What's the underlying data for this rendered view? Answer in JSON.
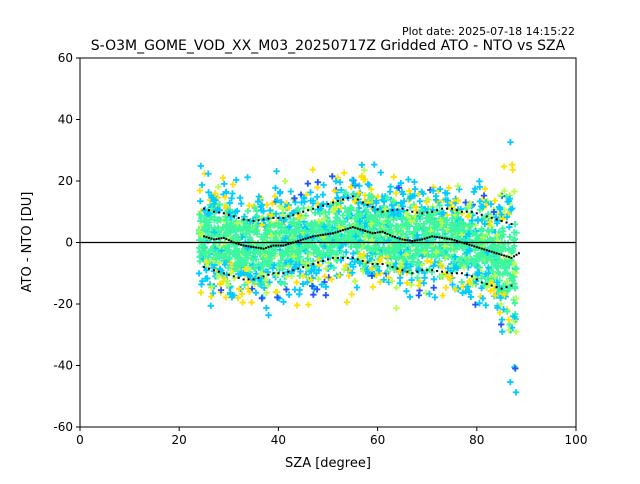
{
  "header": {
    "plot_date": "Plot date: 2025-07-18 14:15:22"
  },
  "chart_data": {
    "type": "scatter",
    "title": "S-O3M_GOME_VOD_XX_M03_20250717Z Gridded ATO - NTO vs SZA",
    "xlabel": "SZA [degree]",
    "ylabel": "ATO - NTO [DU]",
    "xlim": [
      0,
      100
    ],
    "ylim": [
      -60,
      60
    ],
    "xticks": [
      0,
      20,
      40,
      60,
      80,
      100
    ],
    "yticks": [
      -60,
      -40,
      -20,
      0,
      20,
      40,
      60
    ],
    "grid": false,
    "legend": "none",
    "marker": "plus",
    "colors": {
      "dense": "#3ef5a0",
      "mid": "#00ccff",
      "sparse": "#2255ff",
      "yellow": "#ffe000",
      "lime": "#b6ff4d",
      "zero_line": "#000000",
      "trend": "#000000"
    },
    "sza_range": [
      24,
      88
    ],
    "mean_curve": {
      "x": [
        25,
        27,
        29,
        31,
        33,
        35,
        37,
        39,
        41,
        43,
        45,
        47,
        49,
        51,
        53,
        55,
        57,
        59,
        61,
        63,
        65,
        67,
        69,
        71,
        73,
        75,
        77,
        79,
        81,
        83,
        85,
        87,
        88.5
      ],
      "y": [
        2,
        1,
        1.5,
        0,
        -1,
        -1.5,
        -2,
        -1,
        -1,
        0,
        1,
        2,
        2.5,
        3,
        4,
        5,
        4,
        3,
        3.5,
        2,
        1,
        0.5,
        1,
        2,
        1.5,
        1,
        0,
        -1,
        -2,
        -3,
        -4,
        -5,
        -3.5
      ]
    },
    "upper_curve": {
      "x": [
        25,
        27,
        29,
        31,
        33,
        35,
        37,
        39,
        41,
        43,
        45,
        47,
        49,
        51,
        53,
        55,
        57,
        59,
        61,
        63,
        65,
        67,
        69,
        71,
        73,
        75,
        77,
        79,
        81,
        83,
        85,
        87
      ],
      "y": [
        11,
        10,
        9.5,
        8.5,
        7.5,
        7,
        7.5,
        8,
        8,
        9,
        10,
        11,
        12,
        13,
        14,
        15,
        13,
        11.5,
        10,
        10.5,
        11,
        10,
        9.5,
        10,
        11,
        11,
        10,
        10,
        9,
        8,
        7,
        6
      ]
    },
    "lower_curve": {
      "x": [
        25,
        27,
        29,
        31,
        33,
        35,
        37,
        39,
        41,
        43,
        45,
        47,
        49,
        51,
        53,
        55,
        57,
        59,
        61,
        63,
        65,
        67,
        69,
        71,
        73,
        75,
        77,
        79,
        81,
        83,
        85,
        87
      ],
      "y": [
        -8,
        -9,
        -10,
        -11,
        -12,
        -12,
        -11,
        -10,
        -10,
        -9,
        -8,
        -7,
        -6,
        -5,
        -5,
        -5,
        -6,
        -7,
        -7,
        -8,
        -9,
        -10,
        -9,
        -9,
        -9.5,
        -10,
        -10,
        -11,
        -13,
        -14,
        -15,
        -14
      ]
    }
  }
}
